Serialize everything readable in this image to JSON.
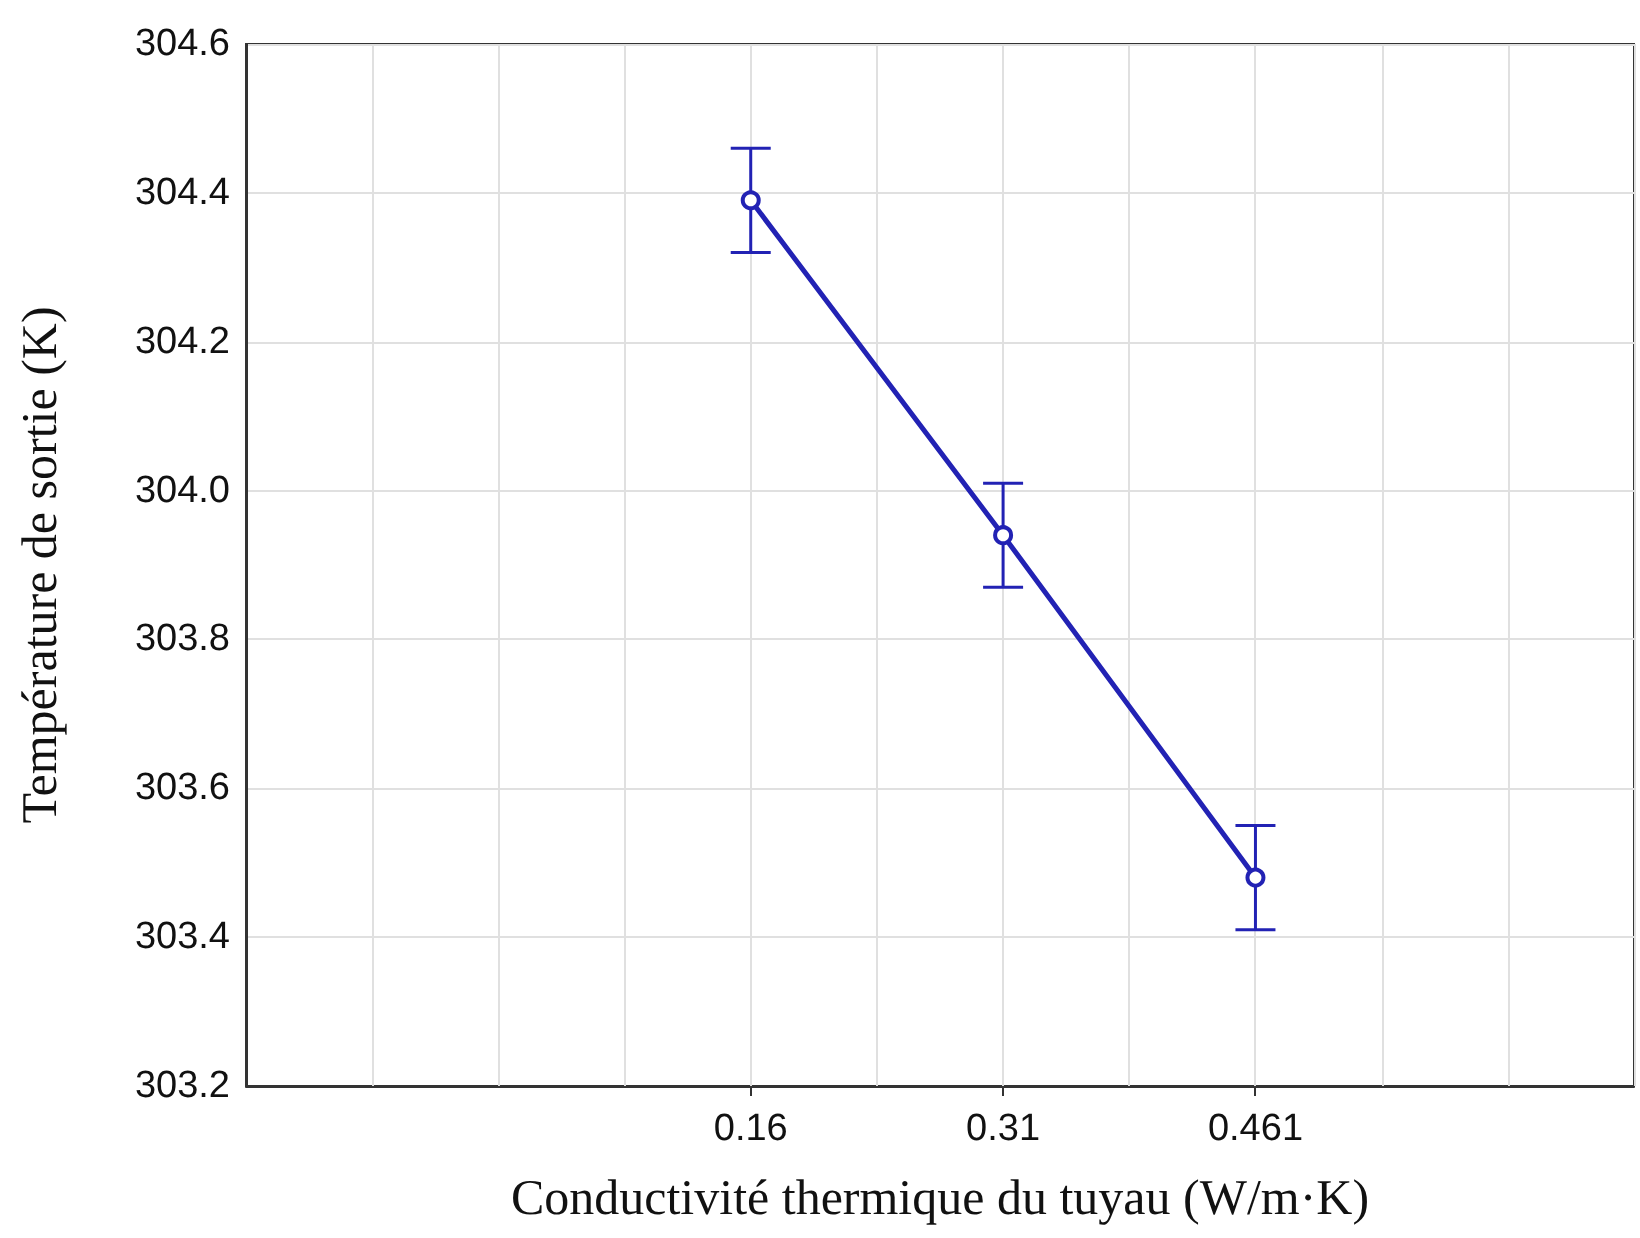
{
  "chart_data": {
    "type": "line",
    "xlabel": "Conductivité thermique du tuyau (W/m·K)",
    "ylabel": "Température de sortie (K)",
    "categories": [
      null,
      null,
      null,
      null,
      "0.16",
      null,
      "0.31",
      null,
      "0.461",
      null,
      null,
      null
    ],
    "series": [
      {
        "color": "#2222b4",
        "values": [
          null,
          null,
          null,
          null,
          304.39,
          null,
          303.94,
          null,
          303.48,
          null,
          null,
          null
        ],
        "errors": [
          null,
          null,
          null,
          null,
          0.07,
          null,
          0.07,
          null,
          0.07,
          null,
          null,
          null
        ]
      }
    ],
    "ylim": [
      303.2,
      304.6
    ],
    "yticks": [
      303.2,
      303.4,
      303.6,
      303.8,
      {
        "value": 304,
        "label": "304.0"
      },
      304.2,
      304.4,
      304.6
    ],
    "grid": true,
    "marker": "circle",
    "line_style": "solid"
  }
}
